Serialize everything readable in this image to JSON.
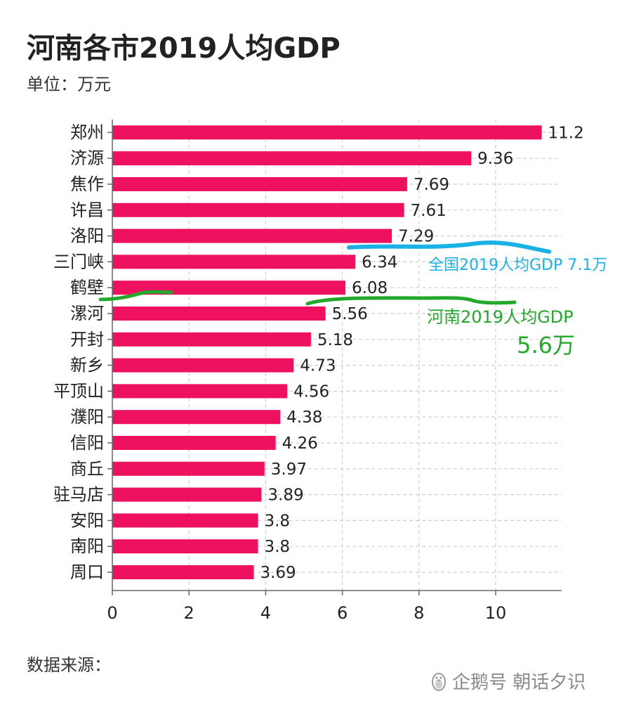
{
  "title": "河南各市2019人均GDP",
  "unit_label": "单位：万元",
  "source_label": "数据来源：",
  "watermark": "企鹅号 朝话夕识",
  "chart_data": {
    "type": "bar",
    "orientation": "horizontal",
    "categories": [
      "郑州",
      "济源",
      "焦作",
      "许昌",
      "洛阳",
      "三门峡",
      "鹤壁",
      "漯河",
      "开封",
      "新乡",
      "平顶山",
      "濮阳",
      "信阳",
      "商丘",
      "驻马店",
      "安阳",
      "南阳",
      "周口"
    ],
    "values": [
      11.2,
      9.36,
      7.69,
      7.61,
      7.29,
      6.34,
      6.08,
      5.56,
      5.18,
      4.73,
      4.56,
      4.38,
      4.26,
      3.97,
      3.89,
      3.8,
      3.8,
      3.69
    ],
    "value_labels": [
      "11.2",
      "9.36",
      "7.69",
      "7.61",
      "7.29",
      "6.34",
      "6.08",
      "5.56",
      "5.18",
      "4.73",
      "4.56",
      "4.38",
      "4.26",
      "3.97",
      "3.89",
      "3.8",
      "3.8",
      "3.69"
    ],
    "xticks": [
      "0",
      "2",
      "4",
      "6",
      "8",
      "10"
    ],
    "xlim": [
      0,
      11.5
    ],
    "grid": true,
    "bar_color": "#ed1160",
    "annotations": [
      {
        "text": "全国2019人均GDP 7.1万",
        "color": "#1ab2e6",
        "value": 7.1
      },
      {
        "text": "河南2019人均GDP",
        "color": "#22a82a"
      },
      {
        "text": "5.6万",
        "color": "#22a82a",
        "value": 5.6
      }
    ]
  }
}
